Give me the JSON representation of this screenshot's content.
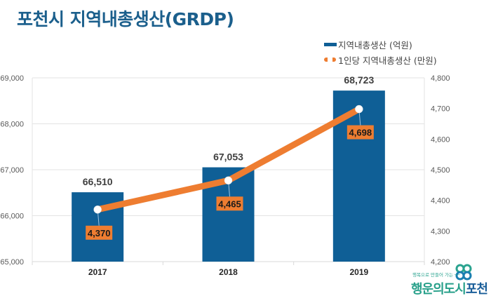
{
  "title": "포천시 지역내총생산(GRDP)",
  "legend": {
    "bar_label": "지역내총생산 (억원)",
    "line_label": "1인당 지역내총생산 (만원)"
  },
  "logo": {
    "tagline": "행복으로 만들어 가는 ──",
    "name_a": "행운의도시",
    "name_b": "포천",
    "icon": "clover-icon"
  },
  "colors": {
    "bar": "#0f5f96",
    "line": "#ee7d31",
    "title": "#1b5f8c",
    "grid": "#e3e3e3"
  },
  "chart_data": {
    "type": "bar",
    "title": "포천시 지역내총생산(GRDP)",
    "categories": [
      "2017",
      "2018",
      "2019"
    ],
    "series": [
      {
        "name": "지역내총생산 (억원)",
        "type": "bar",
        "axis": "left",
        "values": [
          66510,
          67053,
          68723
        ],
        "labels": [
          "66,510",
          "67,053",
          "68,723"
        ]
      },
      {
        "name": "1인당 지역내총생산 (만원)",
        "type": "line",
        "axis": "right",
        "values": [
          4370,
          4465,
          4698
        ],
        "labels": [
          "4,370",
          "4,465",
          "4,698"
        ]
      }
    ],
    "ylim_left": [
      65000,
      69000
    ],
    "yticks_left": [
      "65,000",
      "66,000",
      "67,000",
      "68,000",
      "69,000"
    ],
    "ylim_right": [
      4200,
      4800
    ],
    "yticks_right": [
      "4,200",
      "4,300",
      "4,400",
      "4,500",
      "4,600",
      "4,700",
      "4,800"
    ],
    "xlabel": "",
    "ylabel": "",
    "grid": true,
    "legend_position": "top-right"
  }
}
